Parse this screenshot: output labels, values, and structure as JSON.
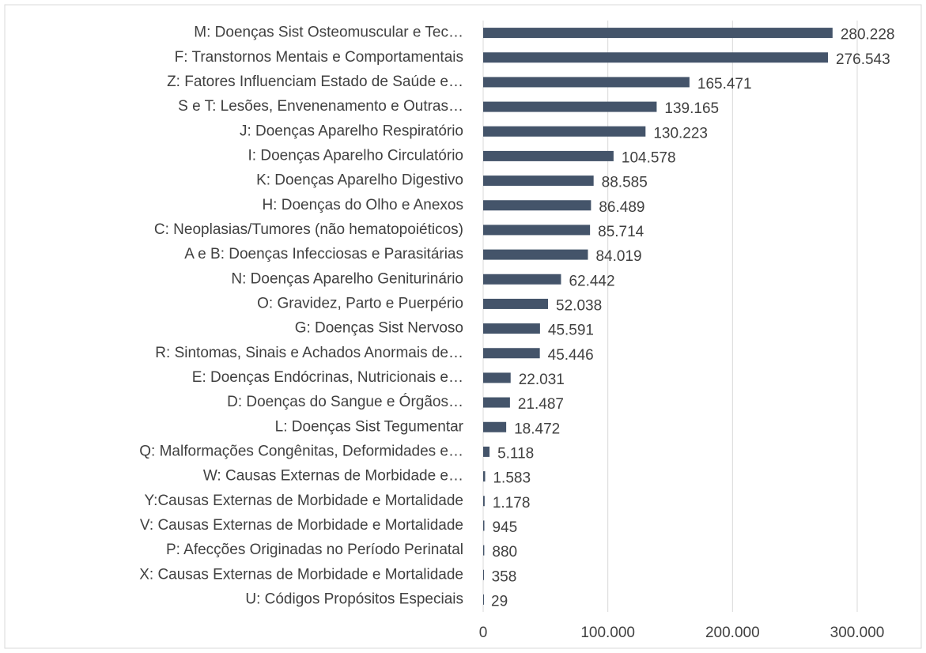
{
  "chart_data": {
    "type": "bar",
    "orientation": "horizontal",
    "categories": [
      "M: Doenças Sist Osteomuscular e Tec…",
      "F: Transtornos Mentais e Comportamentais",
      "Z: Fatores Influenciam Estado de Saúde e…",
      "S e T: Lesões, Envenenamento e Outras…",
      "J: Doenças Aparelho Respiratório",
      "I: Doenças Aparelho Circulatório",
      "K: Doenças Aparelho Digestivo",
      "H: Doenças do Olho e Anexos",
      "C: Neoplasias/Tumores (não hematopoiéticos)",
      "A e B: Doenças Infecciosas e Parasitárias",
      "N: Doenças Aparelho Geniturinário",
      "O: Gravidez, Parto e Puerpério",
      "G: Doenças Sist Nervoso",
      "R: Sintomas, Sinais e Achados Anormais de…",
      "E:  Doenças Endócrinas, Nutricionais e…",
      "D: Doenças do Sangue e Órgãos…",
      "L: Doenças Sist Tegumentar",
      "Q: Malformações Congênitas, Deformidades e…",
      "W: Causas Externas de Morbidade e…",
      "Y:Causas Externas de Morbidade e Mortalidade",
      "V: Causas Externas de Morbidade e Mortalidade",
      "P:  Afecções Originadas no Período Perinatal",
      "X: Causas Externas de Morbidade e Mortalidade",
      "U:  Códigos Propósitos Especiais"
    ],
    "values": [
      280228,
      276543,
      165471,
      139165,
      130223,
      104578,
      88585,
      86489,
      85714,
      84019,
      62442,
      52038,
      45591,
      45446,
      22031,
      21487,
      18472,
      5118,
      1583,
      1178,
      945,
      880,
      358,
      29
    ],
    "value_labels": [
      "280.228",
      "276.543",
      "165.471",
      "139.165",
      "130.223",
      "104.578",
      "88.585",
      "86.489",
      "85.714",
      "84.019",
      "62.442",
      "52.038",
      "45.591",
      "45.446",
      "22.031",
      "21.487",
      "18.472",
      "5.118",
      "1.583",
      "1.178",
      "945",
      "880",
      "358",
      "29"
    ],
    "color": "#44546a",
    "xlim": [
      0,
      300000
    ],
    "xticks": [
      0,
      {
        "value": 100000,
        "label": "100.000"
      },
      {
        "value": 200000,
        "label": "200.000"
      },
      {
        "value": 300000,
        "label": "300.000"
      }
    ],
    "grid": true
  }
}
